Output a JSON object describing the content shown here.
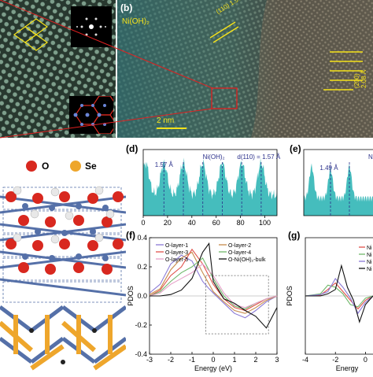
{
  "panels": {
    "b": {
      "label": "(b)",
      "material": "Ni(OH)₂",
      "scale": "2 nm",
      "d1": "(110) 1.57 Å",
      "d2": "(200) 2.08 Å"
    },
    "d": {
      "label": "(d)",
      "left_ann": "1.57 Å",
      "mid_ann": "Ni(OH)₂",
      "right_ann": "d(110) = 1.57 Å"
    },
    "e": {
      "label": "(e)",
      "ann": "1.49 Å",
      "edge": "Ni"
    },
    "f": {
      "label": "(f)",
      "ylabel": "PDOS",
      "xlabel": "Energy (eV)"
    },
    "g": {
      "label": "(g)",
      "ylabel": "PDOS",
      "xlabel": "Energy"
    },
    "structure": {
      "legend_o": "O",
      "legend_se": "Se"
    }
  },
  "colors": {
    "teal": "#45bdbd",
    "o_atom": "#d8281f",
    "se_atom": "#eea62c",
    "ni_atom": "#5570a8",
    "h_atom": "#e8e8e8"
  },
  "chart_data": [
    {
      "type": "area",
      "panel": "d",
      "x_ticks": [
        0,
        20,
        40,
        60,
        80,
        100
      ],
      "xlim": [
        0,
        110
      ],
      "peaks": [
        2,
        17,
        33,
        49,
        65,
        81,
        97
      ],
      "annotations": [
        "1.57 Å",
        "Ni(OH)₂",
        "d(110) = 1.57 Å"
      ]
    },
    {
      "type": "line",
      "panel": "f",
      "xlabel": "Energy (eV)",
      "ylabel": "PDOS",
      "xlim": [
        -3,
        3
      ],
      "ylim": [
        -0.4,
        0.4
      ],
      "x_ticks": [
        -3,
        -2,
        -1,
        0,
        1,
        2,
        3
      ],
      "y_ticks": [
        -0.4,
        -0.2,
        0.0,
        0.2,
        0.4
      ],
      "legend": [
        "O-layer-1",
        "O-layer-2",
        "O-layer-3",
        "O-layer-4",
        "O-layer-5",
        "O-Ni(OH)₂-bulk"
      ],
      "series": [
        {
          "name": "O-layer-1",
          "color": "#8a7ad6",
          "x": [
            -3,
            -2.5,
            -2,
            -1.5,
            -1,
            -0.5,
            -0.2,
            0,
            0.5,
            1,
            1.5,
            2,
            2.5,
            3
          ],
          "y": [
            0.02,
            0.08,
            0.22,
            0.28,
            0.24,
            0.1,
            0.05,
            0.02,
            -0.05,
            -0.12,
            -0.15,
            -0.1,
            -0.04,
            0.0
          ]
        },
        {
          "name": "O-layer-2",
          "color": "#c78a4a",
          "x": [
            -3,
            -2.5,
            -2,
            -1.5,
            -1,
            -0.5,
            0,
            0.5,
            1,
            1.5,
            2,
            2.5,
            3
          ],
          "y": [
            0.01,
            0.05,
            0.18,
            0.26,
            0.3,
            0.16,
            0.03,
            -0.04,
            -0.1,
            -0.12,
            -0.08,
            -0.03,
            0.0
          ]
        },
        {
          "name": "O-layer-3",
          "color": "#e0524a",
          "x": [
            -3,
            -2.5,
            -2,
            -1.5,
            -1,
            -0.5,
            0,
            0.5,
            1,
            1.5,
            2,
            2.5,
            3
          ],
          "y": [
            0.0,
            0.04,
            0.14,
            0.2,
            0.32,
            0.22,
            0.08,
            -0.02,
            -0.08,
            -0.1,
            -0.06,
            -0.02,
            0.0
          ]
        },
        {
          "name": "O-layer-4",
          "color": "#6fb86a",
          "x": [
            -3,
            -2.5,
            -2,
            -1.5,
            -1,
            -0.5,
            0,
            0.5,
            1,
            1.5,
            2,
            2.5,
            3
          ],
          "y": [
            0.0,
            0.03,
            0.1,
            0.16,
            0.2,
            0.26,
            0.12,
            0.0,
            -0.07,
            -0.09,
            -0.05,
            -0.02,
            0.0
          ]
        },
        {
          "name": "O-layer-5",
          "color": "#e6a0c8",
          "x": [
            -3,
            -2.5,
            -2,
            -1.5,
            -1,
            -0.5,
            0,
            0.5,
            1,
            1.5,
            2,
            2.5,
            3
          ],
          "y": [
            0.0,
            0.02,
            0.08,
            0.12,
            0.16,
            0.22,
            0.14,
            0.02,
            -0.06,
            -0.08,
            -0.05,
            -0.02,
            0.0
          ]
        },
        {
          "name": "O-Ni(OH)₂-bulk",
          "color": "#111111",
          "x": [
            -3,
            -2.5,
            -2,
            -1.5,
            -1,
            -0.5,
            -0.2,
            0,
            0.5,
            1,
            1.5,
            2,
            2.5,
            3
          ],
          "y": [
            0.0,
            0.0,
            0.01,
            0.04,
            0.12,
            0.3,
            0.36,
            0.1,
            -0.02,
            -0.05,
            -0.1,
            -0.14,
            -0.22,
            -0.08
          ]
        }
      ]
    },
    {
      "type": "line",
      "panel": "g",
      "xlabel": "Energy",
      "ylabel": "PDOS",
      "xlim": [
        -4,
        0.5
      ],
      "x_ticks": [
        -4,
        -2,
        0
      ],
      "legend_partial": [
        "Ni",
        "Ni",
        "Ni",
        "Ni"
      ]
    }
  ]
}
